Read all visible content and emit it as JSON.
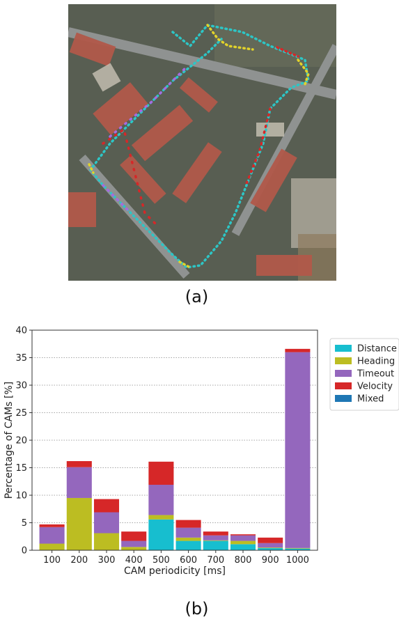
{
  "captions": {
    "a": "(a)",
    "b": "(b)"
  },
  "chart_data": {
    "type": "bar",
    "stacked": true,
    "xlabel": "CAM periodicity [ms]",
    "ylabel": "Percentage of CAMs [%]",
    "ylim": [
      0,
      40
    ],
    "yticks": [
      0,
      5,
      10,
      15,
      20,
      25,
      30,
      35,
      40
    ],
    "grid": "horizontal dotted",
    "legend_position": "right",
    "categories": [
      "100",
      "200",
      "300",
      "400",
      "500",
      "600",
      "700",
      "800",
      "900",
      "1000"
    ],
    "series": [
      {
        "name": "Distance",
        "color": "#17becf",
        "values": [
          0.0,
          0.0,
          0.0,
          0.0,
          5.6,
          1.7,
          1.7,
          1.1,
          0.4,
          0.3
        ]
      },
      {
        "name": "Heading",
        "color": "#bcbd22",
        "values": [
          1.2,
          9.5,
          3.1,
          0.6,
          0.8,
          0.6,
          0.1,
          0.6,
          0.1,
          0.1
        ]
      },
      {
        "name": "Timeout",
        "color": "#9467bd",
        "values": [
          3.0,
          5.6,
          3.8,
          1.1,
          5.5,
          1.8,
          0.9,
          1.0,
          0.8,
          35.6
        ]
      },
      {
        "name": "Velocity",
        "color": "#d62728",
        "values": [
          0.5,
          1.1,
          2.4,
          1.7,
          4.2,
          1.4,
          0.7,
          0.2,
          1.0,
          0.6
        ]
      },
      {
        "name": "Mixed",
        "color": "#1f77b4",
        "values": [
          0.0,
          0.0,
          0.0,
          0.0,
          0.0,
          0.0,
          0.0,
          0.0,
          0.0,
          0.0
        ]
      }
    ]
  }
}
